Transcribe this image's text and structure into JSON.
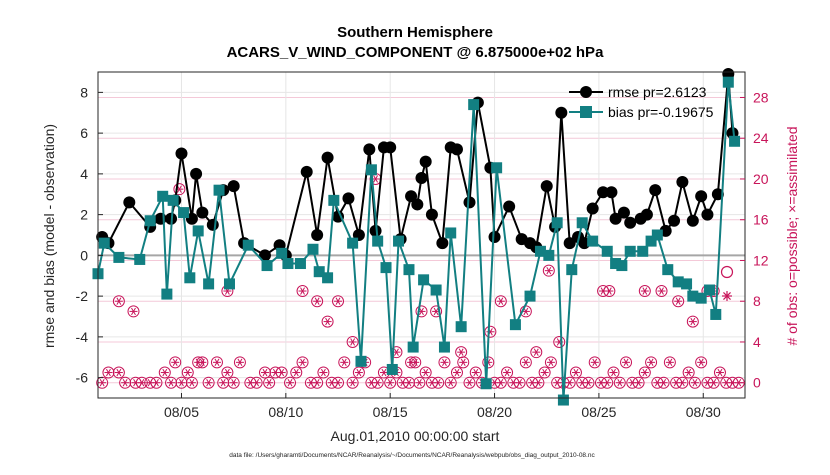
{
  "chart_data": {
    "type": "line",
    "title": "Southern Hemisphere",
    "subtitle": "ACARS_V_WIND_COMPONENT @ 6.875000e+02 hPa",
    "xlabel": "Aug.01,2010 00:00:00 start",
    "ylabel_left": "rmse and bias (model - observation)",
    "ylabel_right": "# of obs: o=possible; ×=assimilated",
    "footer": "data file: /Users/gharamti/Documents/NCAR/Reanalysis/~/Documents/NCAR/Reanalysis/webpub/obs_diag_output_2010-08.nc",
    "x_ticks": [
      {
        "x": 5,
        "label": "08/05"
      },
      {
        "x": 10,
        "label": "08/10"
      },
      {
        "x": 15,
        "label": "08/15"
      },
      {
        "x": 20,
        "label": "08/20"
      },
      {
        "x": 25,
        "label": "08/25"
      },
      {
        "x": 30,
        "label": "08/30"
      }
    ],
    "xlim": [
      1,
      32
    ],
    "ylim_left": [
      -7,
      9
    ],
    "y_ticks_left": [
      -6,
      -4,
      -2,
      0,
      2,
      4,
      6,
      8
    ],
    "ylim_right": [
      -1.5,
      30.5
    ],
    "y_ticks_right": [
      0,
      4,
      8,
      12,
      16,
      20,
      24,
      28
    ],
    "grid": true,
    "legend_position": "top-right",
    "colors": {
      "rmse": "#000000",
      "bias": "#127f82",
      "obs": "#c8155a",
      "zero_line": "#a6a6a6",
      "grid": "#e6e6e6"
    },
    "series": [
      {
        "name": "rmse pr=2.6123",
        "x": [
          1.2,
          1.5,
          2.5,
          3.5,
          4.0,
          4.5,
          4.7,
          5.0,
          5.5,
          5.7,
          6.0,
          6.5,
          7.0,
          7.5,
          8.0,
          9.0,
          9.7,
          10.0,
          11.0,
          11.5,
          12.0,
          12.5,
          13.0,
          13.5,
          14.0,
          14.3,
          14.7,
          15.0,
          15.5,
          16.0,
          16.3,
          16.5,
          16.7,
          17.0,
          17.5,
          17.9,
          18.2,
          18.8,
          19.2,
          19.8,
          20.0,
          20.7,
          21.3,
          21.7,
          22.0,
          22.5,
          22.9,
          23.2,
          23.6,
          24.0,
          24.3,
          24.7,
          25.2,
          25.6,
          25.8,
          26.2,
          26.5,
          27.0,
          27.3,
          27.7,
          28.2,
          28.6,
          29.0,
          29.5,
          29.9,
          30.2,
          30.7,
          31.2,
          31.4
        ],
        "y": [
          0.9,
          0.6,
          2.6,
          1.4,
          1.8,
          1.8,
          2.7,
          5.0,
          1.8,
          4.0,
          2.1,
          1.5,
          3.2,
          3.4,
          0.6,
          0.0,
          0.5,
          0.0,
          4.1,
          1.0,
          4.8,
          1.9,
          2.8,
          1.0,
          5.2,
          1.2,
          5.3,
          5.3,
          0.8,
          2.9,
          2.5,
          3.8,
          4.6,
          2.0,
          0.6,
          5.3,
          5.2,
          2.6,
          7.5,
          4.3,
          0.9,
          2.4,
          0.8,
          0.6,
          0.4,
          3.4,
          1.4,
          7.0,
          0.6,
          0.9,
          0.6,
          2.3,
          3.1,
          3.1,
          1.8,
          2.1,
          1.6,
          1.8,
          2.0,
          3.2,
          1.2,
          1.7,
          3.6,
          1.7,
          2.9,
          2.0,
          3.0,
          8.9,
          6.0
        ]
      },
      {
        "name": "bias pr=-0.19675",
        "x": [
          1.0,
          1.3,
          2.0,
          3.0,
          3.5,
          4.1,
          4.3,
          4.6,
          5.1,
          5.4,
          5.8,
          6.3,
          6.8,
          7.3,
          8.2,
          9.1,
          9.8,
          10.1,
          10.7,
          11.3,
          11.6,
          12.0,
          12.3,
          13.2,
          13.6,
          14.1,
          14.4,
          14.8,
          15.1,
          15.4,
          15.9,
          16.1,
          16.6,
          17.2,
          17.6,
          17.9,
          18.4,
          19.0,
          19.6,
          20.1,
          21.0,
          21.7,
          22.2,
          22.6,
          23.0,
          23.3,
          23.7,
          24.2,
          24.7,
          25.4,
          25.8,
          26.1,
          26.5,
          27.1,
          27.5,
          27.8,
          28.3,
          28.8,
          29.2,
          29.5,
          29.9,
          30.3,
          30.6,
          31.2,
          31.5
        ],
        "y": [
          -0.9,
          0.6,
          -0.1,
          -0.2,
          1.7,
          2.9,
          -1.9,
          2.7,
          2.1,
          -1.1,
          1.2,
          -1.4,
          3.2,
          -1.4,
          0.5,
          -0.5,
          0.1,
          -0.4,
          -0.4,
          0.3,
          -0.8,
          -1.1,
          2.7,
          0.6,
          -5.2,
          4.2,
          0.7,
          -0.6,
          -5.6,
          0.7,
          -0.7,
          -4.5,
          -1.2,
          -1.7,
          -4.5,
          1.1,
          -3.5,
          7.4,
          -6.3,
          4.3,
          -3.4,
          -2.0,
          0.2,
          0.0,
          1.6,
          -7.1,
          -0.7,
          1.6,
          0.7,
          0.2,
          -0.4,
          -0.5,
          0.2,
          0.2,
          0.7,
          1.0,
          -0.7,
          -1.3,
          -1.4,
          -2.0,
          -2.1,
          -1.7,
          -2.9,
          8.5,
          5.6
        ]
      },
      {
        "name": "",
        "marker": "o and x",
        "x": [
          1.2,
          1.5,
          2.0,
          2.3,
          2.8,
          3.1,
          3.5,
          3.8,
          4.2,
          4.5,
          4.7,
          5.0,
          5.3,
          5.5,
          5.8,
          6.0,
          6.3,
          6.7,
          7.0,
          7.2,
          7.5,
          7.8,
          8.3,
          8.6,
          9.0,
          9.2,
          9.5,
          9.8,
          10.2,
          10.5,
          10.8,
          11.2,
          11.5,
          11.8,
          12.2,
          12.5,
          12.8,
          13.2,
          13.5,
          13.8,
          14.1,
          14.4,
          14.7,
          15.0,
          15.3,
          15.6,
          15.9,
          16.2,
          16.4,
          16.7,
          17.0,
          17.3,
          17.6,
          17.9,
          18.2,
          18.5,
          18.8,
          19.1,
          19.4,
          19.7,
          20.0,
          20.3,
          20.6,
          20.9,
          21.2,
          21.5,
          21.8,
          22.1,
          22.4,
          22.7,
          23.0,
          23.3,
          23.6,
          23.9,
          24.2,
          24.5,
          24.8,
          25.1,
          25.4,
          25.7,
          26.0,
          26.3,
          26.6,
          26.9,
          27.2,
          27.5,
          27.8,
          28.1,
          28.4,
          28.7,
          29.0,
          29.3,
          29.6,
          29.9,
          30.2,
          30.5,
          30.8,
          31.1,
          31.4,
          31.7,
          2.0,
          2.7,
          4.9,
          7.2,
          10.8,
          11.5,
          12.0,
          12.5,
          13.2,
          14.3,
          15.3,
          16.0,
          16.5,
          17.2,
          18.4,
          19.8,
          20.3,
          21.5,
          22.0,
          22.6,
          23.1,
          25.2,
          25.5,
          27.2,
          28.0,
          28.8,
          29.5,
          30.2,
          30.5
        ],
        "y": [
          0,
          1,
          1,
          0,
          0,
          0,
          0,
          0,
          1,
          0,
          2,
          0,
          1,
          0,
          2,
          2,
          0,
          2,
          0,
          1,
          0,
          2,
          0,
          0,
          1,
          0,
          1,
          1,
          0,
          1,
          2,
          0,
          0,
          1,
          0,
          0,
          2,
          0,
          1,
          2,
          0,
          0,
          1,
          0,
          1,
          0,
          0,
          2,
          0,
          1,
          0,
          0,
          2,
          0,
          1,
          2,
          0,
          1,
          0,
          2,
          0,
          0,
          1,
          0,
          0,
          2,
          0,
          0,
          1,
          2,
          0,
          0,
          0,
          1,
          0,
          0,
          2,
          0,
          0,
          1,
          0,
          2,
          0,
          0,
          1,
          2,
          0,
          0,
          2,
          0,
          0,
          1,
          0,
          2,
          0,
          0,
          1,
          0,
          0,
          0,
          8,
          7,
          19,
          9,
          9,
          8,
          6,
          8,
          4,
          20,
          3,
          2,
          7,
          7,
          3,
          5,
          8,
          7,
          3,
          11,
          4,
          9,
          9,
          9,
          9,
          8,
          6,
          9,
          9
        ]
      }
    ],
    "legend_extra": [
      {
        "symbol": "o"
      },
      {
        "symbol": "*"
      }
    ]
  }
}
